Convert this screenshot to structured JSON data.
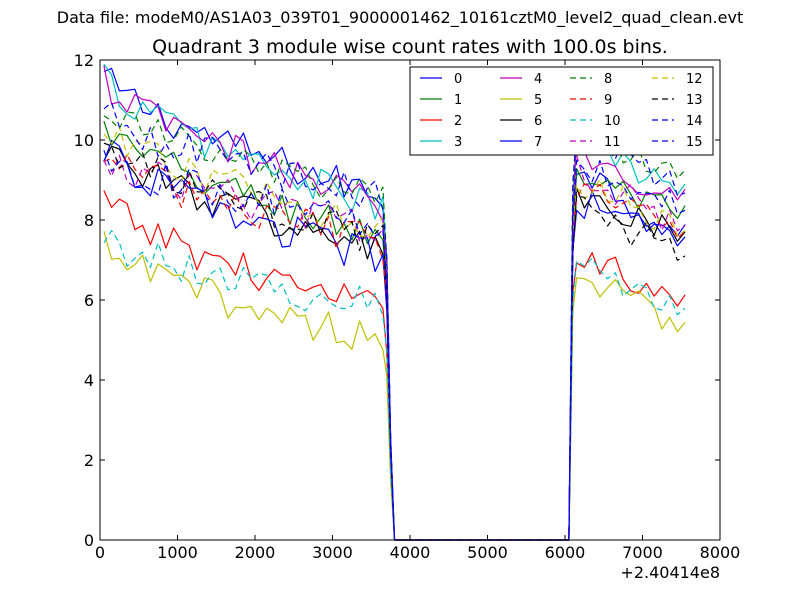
{
  "figure": {
    "suptitle": "Data file: modeM0/AS1A03_039T01_9000001462_10161cztM0_level2_quad_clean.evt"
  },
  "chart_data": {
    "type": "line",
    "title": "Quadrant 3 module wise count rates with 100.0s bins.",
    "xlabel": "",
    "ylabel": "",
    "x_offset_label": "+2.40414e8",
    "xlim": [
      0,
      8000
    ],
    "ylim": [
      0,
      12
    ],
    "xticks": [
      0,
      1000,
      2000,
      3000,
      4000,
      5000,
      6000,
      7000,
      8000
    ],
    "yticks": [
      0,
      2,
      4,
      6,
      8,
      10,
      12
    ],
    "xtick_labels": [
      "0",
      "1000",
      "2000",
      "3000",
      "4000",
      "5000",
      "6000",
      "7000",
      "8000"
    ],
    "ytick_labels": [
      "0",
      "2",
      "4",
      "6",
      "8",
      "10",
      "12"
    ],
    "grid": false,
    "legend": {
      "loc": "upper right",
      "ncol": 4
    },
    "bin_width": 100,
    "segments": [
      {
        "x_start": 50,
        "x_end": 3650
      },
      {
        "x_start": 6150,
        "x_end": 7550
      }
    ],
    "zero_region": [
      3800,
      6050
    ],
    "series": [
      {
        "name": "0",
        "color": "#0000ff",
        "dash": "solid",
        "first": [
          11.6,
          8.6
        ],
        "second": [
          9.4,
          7.5
        ]
      },
      {
        "name": "1",
        "color": "#008000",
        "dash": "solid",
        "first": [
          10.3,
          7.6
        ],
        "second": [
          9.2,
          8.0
        ]
      },
      {
        "name": "2",
        "color": "#ff0000",
        "dash": "solid",
        "first": [
          8.5,
          5.7
        ],
        "second": [
          7.3,
          5.8
        ]
      },
      {
        "name": "3",
        "color": "#00bfbf",
        "dash": "solid",
        "first": [
          11.6,
          8.3
        ],
        "second": [
          10.1,
          8.6
        ]
      },
      {
        "name": "4",
        "color": "#bf00bf",
        "dash": "solid",
        "first": [
          11.5,
          8.4
        ],
        "second": [
          9.7,
          8.5
        ]
      },
      {
        "name": "5",
        "color": "#bfbf00",
        "dash": "solid",
        "first": [
          7.3,
          5.0
        ],
        "second": [
          6.7,
          5.2
        ]
      },
      {
        "name": "6",
        "color": "#000000",
        "dash": "solid",
        "first": [
          9.9,
          7.2
        ],
        "second": [
          8.6,
          7.5
        ]
      },
      {
        "name": "7",
        "color": "#0000ff",
        "dash": "solid",
        "first": [
          9.8,
          7.0
        ],
        "second": [
          8.5,
          7.4
        ]
      },
      {
        "name": "8",
        "color": "#008000",
        "dash": "dashed",
        "first": [
          10.9,
          8.5
        ],
        "second": [
          10.2,
          9.1
        ]
      },
      {
        "name": "9",
        "color": "#ff0000",
        "dash": "dashed",
        "first": [
          9.7,
          7.4
        ],
        "second": [
          8.9,
          7.6
        ]
      },
      {
        "name": "10",
        "color": "#00bfbf",
        "dash": "dashed",
        "first": [
          7.6,
          5.8
        ],
        "second": [
          7.0,
          5.7
        ]
      },
      {
        "name": "11",
        "color": "#bf00bf",
        "dash": "dashed",
        "first": [
          9.6,
          7.8
        ],
        "second": [
          9.3,
          7.8
        ]
      },
      {
        "name": "12",
        "color": "#bfbf00",
        "dash": "dashed",
        "first": [
          10.2,
          7.9
        ],
        "second": [
          9.0,
          7.7
        ]
      },
      {
        "name": "13",
        "color": "#000000",
        "dash": "dashed",
        "first": [
          9.9,
          7.5
        ],
        "second": [
          8.4,
          7.1
        ]
      },
      {
        "name": "14",
        "color": "#0000ff",
        "dash": "dashed",
        "first": [
          10.7,
          8.6
        ],
        "second": [
          10.5,
          8.7
        ]
      },
      {
        "name": "15",
        "color": "#0000ff",
        "dash": "dashed",
        "first": [
          9.6,
          7.9
        ],
        "second": [
          9.4,
          8.3
        ]
      }
    ]
  }
}
